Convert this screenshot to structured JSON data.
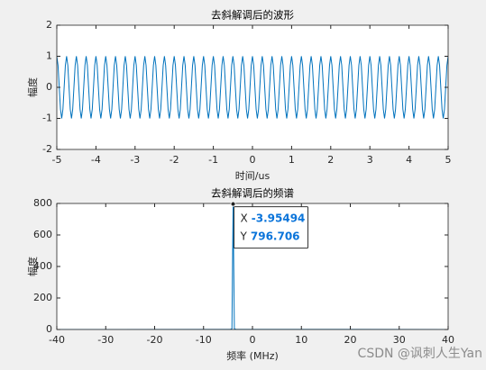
{
  "chart_data": [
    {
      "type": "line",
      "title": "去斜解调后的波形",
      "xlabel": "时间/us",
      "ylabel": "幅度",
      "xlim": [
        -5,
        5
      ],
      "xticks": [
        -5,
        -4,
        -3,
        -2,
        -1,
        0,
        1,
        2,
        3,
        4,
        5
      ],
      "ylim": [
        -2,
        2
      ],
      "yticks": [
        -2,
        -1,
        0,
        1,
        2
      ],
      "color": "#0072bd",
      "x": [
        -5,
        -4.96875,
        -4.9375,
        -4.90625,
        -4.875,
        -4.84375,
        -4.8125,
        -4.78125,
        -4.75,
        -4.71875,
        -4.6875,
        -4.65625,
        -4.625,
        -4.59375,
        -4.5625,
        -4.53125,
        -4.5,
        -4.46875,
        -4.4375,
        -4.40625,
        -4.375,
        -4.34375,
        -4.3125,
        -4.28125,
        -4.25,
        -4.21875,
        -4.1875,
        -4.15625,
        -4.125,
        -4.09375,
        -4.0625,
        -4.03125,
        -4,
        -3.96875,
        -3.9375,
        -3.90625,
        -3.875,
        -3.84375,
        -3.8125,
        -3.78125,
        -3.75,
        -3.71875,
        -3.6875,
        -3.65625,
        -3.625,
        -3.59375,
        -3.5625,
        -3.53125,
        -3.5,
        -3.46875,
        -3.4375,
        -3.40625,
        -3.375,
        -3.34375,
        -3.3125,
        -3.28125,
        -3.25,
        -3.21875,
        -3.1875,
        -3.15625,
        -3.125,
        -3.09375,
        -3.0625,
        -3.03125,
        -3,
        -2.96875,
        -2.9375,
        -2.90625,
        -2.875,
        -2.84375,
        -2.8125,
        -2.78125,
        -2.75,
        -2.71875,
        -2.6875,
        -2.65625,
        -2.625,
        -2.59375,
        -2.5625,
        -2.53125,
        -2.5,
        -2.46875,
        -2.4375,
        -2.40625,
        -2.375,
        -2.34375,
        -2.3125,
        -2.28125,
        -2.25,
        -2.21875,
        -2.1875,
        -2.15625,
        -2.125,
        -2.09375,
        -2.0625,
        -2.03125,
        -2,
        -1.96875,
        -1.9375,
        -1.90625,
        -1.875,
        -1.84375,
        -1.8125,
        -1.78125,
        -1.75,
        -1.71875,
        -1.6875,
        -1.65625,
        -1.625,
        -1.59375,
        -1.5625,
        -1.53125,
        -1.5,
        -1.46875,
        -1.4375,
        -1.40625,
        -1.375,
        -1.34375,
        -1.3125,
        -1.28125,
        -1.25,
        -1.21875,
        -1.1875,
        -1.15625,
        -1.125,
        -1.09375,
        -1.0625,
        -1.03125,
        -1,
        -0.96875,
        -0.9375,
        -0.90625,
        -0.875,
        -0.84375,
        -0.8125,
        -0.78125,
        -0.75,
        -0.71875,
        -0.6875,
        -0.65625,
        -0.625,
        -0.59375,
        -0.5625,
        -0.53125,
        -0.5,
        -0.46875,
        -0.4375,
        -0.40625,
        -0.375,
        -0.34375,
        -0.3125,
        -0.28125,
        -0.25,
        -0.21875,
        -0.1875,
        -0.15625,
        -0.125,
        -0.09375,
        -0.0625,
        -0.03125,
        0,
        0.03125,
        0.0625,
        0.09375,
        0.125,
        0.15625,
        0.1875,
        0.21875,
        0.25,
        0.28125,
        0.3125,
        0.34375,
        0.375,
        0.40625,
        0.4375,
        0.46875,
        0.5,
        0.53125,
        0.5625,
        0.59375,
        0.625,
        0.65625,
        0.6875,
        0.71875,
        0.75,
        0.78125,
        0.8125,
        0.84375,
        0.875,
        0.90625,
        0.9375,
        0.96875,
        1,
        1.03125,
        1.0625,
        1.09375,
        1.125,
        1.15625,
        1.1875,
        1.21875,
        1.25,
        1.28125,
        1.3125,
        1.34375,
        1.375,
        1.40625,
        1.4375,
        1.46875,
        1.5,
        1.53125,
        1.5625,
        1.59375,
        1.625,
        1.65625,
        1.6875,
        1.71875,
        1.75,
        1.78125,
        1.8125,
        1.84375,
        1.875,
        1.90625,
        1.9375,
        1.96875,
        2,
        2.03125,
        2.0625,
        2.09375,
        2.125,
        2.15625,
        2.1875,
        2.21875,
        2.25,
        2.28125,
        2.3125,
        2.34375,
        2.375,
        2.40625,
        2.4375,
        2.46875,
        2.5,
        2.53125,
        2.5625,
        2.59375,
        2.625,
        2.65625,
        2.6875,
        2.71875,
        2.75,
        2.78125,
        2.8125,
        2.84375,
        2.875,
        2.90625,
        2.9375,
        2.96875,
        3,
        3.03125,
        3.0625,
        3.09375,
        3.125,
        3.15625,
        3.1875,
        3.21875,
        3.25,
        3.28125,
        3.3125,
        3.34375,
        3.375,
        3.40625,
        3.4375,
        3.46875,
        3.5,
        3.53125,
        3.5625,
        3.59375,
        3.625,
        3.65625,
        3.6875,
        3.71875,
        3.75,
        3.78125,
        3.8125,
        3.84375,
        3.875,
        3.90625,
        3.9375,
        3.96875,
        4,
        4.03125,
        4.0625,
        4.09375,
        4.125,
        4.15625,
        4.1875,
        4.21875,
        4.25,
        4.28125,
        4.3125,
        4.34375,
        4.375,
        4.40625,
        4.4375,
        4.46875,
        4.5,
        4.53125,
        4.5625,
        4.59375,
        4.625,
        4.65625,
        4.6875,
        4.71875,
        4.75,
        4.78125,
        4.8125,
        4.84375,
        4.875,
        4.90625,
        4.9375,
        4.96875,
        5
      ],
      "values": [
        1,
        0.7071,
        0,
        -0.7071,
        -1,
        -0.7071,
        0,
        0.7071,
        1,
        0.7071,
        0,
        -0.7071,
        -1,
        -0.7071,
        0,
        0.7071,
        1,
        0.7071,
        0,
        -0.7071,
        -1,
        -0.7071,
        0,
        0.7071,
        1,
        0.7071,
        0,
        -0.7071,
        -1,
        -0.7071,
        0,
        0.7071,
        1,
        0.7071,
        0,
        -0.7071,
        -1,
        -0.7071,
        0,
        0.7071,
        1,
        0.7071,
        0,
        -0.7071,
        -1,
        -0.7071,
        0,
        0.7071,
        1,
        0.7071,
        0,
        -0.7071,
        -1,
        -0.7071,
        0,
        0.7071,
        1,
        0.7071,
        0,
        -0.7071,
        -1,
        -0.7071,
        0,
        0.7071,
        1,
        0.7071,
        0,
        -0.7071,
        -1,
        -0.7071,
        0,
        0.7071,
        1,
        0.7071,
        0,
        -0.7071,
        -1,
        -0.7071,
        0,
        0.7071,
        1,
        0.7071,
        0,
        -0.7071,
        -1,
        -0.7071,
        0,
        0.7071,
        1,
        0.7071,
        0,
        -0.7071,
        -1,
        -0.7071,
        0,
        0.7071,
        1,
        0.7071,
        0,
        -0.7071,
        -1,
        -0.7071,
        0,
        0.7071,
        1,
        0.7071,
        0,
        -0.7071,
        -1,
        -0.7071,
        0,
        0.7071,
        1,
        0.7071,
        0,
        -0.7071,
        -1,
        -0.7071,
        0,
        0.7071,
        1,
        0.7071,
        0,
        -0.7071,
        -1,
        -0.7071,
        0,
        0.7071,
        1,
        0.7071,
        0,
        -0.7071,
        -1,
        -0.7071,
        0,
        0.7071,
        1,
        0.7071,
        0,
        -0.7071,
        -1,
        -0.7071,
        0,
        0.7071,
        1,
        0.7071,
        0,
        -0.7071,
        -1,
        -0.7071,
        0,
        0.7071,
        1,
        0.7071,
        0,
        -0.7071,
        -1,
        -0.7071,
        0,
        0.7071,
        1,
        0.7071,
        0,
        -0.7071,
        -1,
        -0.7071,
        0,
        0.7071,
        1,
        0.7071,
        0,
        -0.7071,
        -1,
        -0.7071,
        0,
        0.7071,
        1,
        0.7071,
        0,
        -0.7071,
        -1,
        -0.7071,
        0,
        0.7071,
        1,
        0.7071,
        0,
        -0.7071,
        -1,
        -0.7071,
        0,
        0.7071,
        1,
        0.7071,
        0,
        -0.7071,
        -1,
        -0.7071,
        0,
        0.7071,
        1,
        0.7071,
        0,
        -0.7071,
        -1,
        -0.7071,
        0,
        0.7071,
        1,
        0.7071,
        0,
        -0.7071,
        -1,
        -0.7071,
        0,
        0.7071,
        1,
        0.7071,
        0,
        -0.7071,
        -1,
        -0.7071,
        0,
        0.7071,
        1,
        0.7071,
        0,
        -0.7071,
        -1,
        -0.7071,
        0,
        0.7071,
        1,
        0.7071,
        0,
        -0.7071,
        -1,
        -0.7071,
        0,
        0.7071,
        1,
        0.7071,
        0,
        -0.7071,
        -1,
        -0.7071,
        0,
        0.7071,
        1,
        0.7071,
        0,
        -0.7071,
        -1,
        -0.7071,
        0,
        0.7071,
        1,
        0.7071,
        0,
        -0.7071,
        -1,
        -0.7071,
        0,
        0.7071,
        1,
        0.7071,
        0,
        -0.7071,
        -1,
        -0.7071,
        0,
        0.7071,
        1,
        0.7071,
        0,
        -0.7071,
        -1,
        -0.7071,
        0,
        0.7071,
        1,
        0.7071,
        0,
        -0.7071,
        -1,
        -0.7071,
        0,
        0.7071,
        1,
        0.7071,
        0,
        -0.7071,
        -1,
        -0.7071,
        0,
        0.7071,
        1,
        0.7071,
        0,
        -0.7071,
        -1,
        -0.7071,
        0,
        0.7071,
        1,
        0.7071,
        0,
        -0.7071,
        -1,
        -0.7071,
        0,
        0.7071,
        1,
        0.7071,
        0,
        -0.7071,
        -1,
        -0.7071,
        0,
        0.7071,
        1
      ]
    },
    {
      "type": "line",
      "title": "去斜解调后的频谱",
      "xlabel": "频率 (MHz)",
      "ylabel": "幅度",
      "xlim": [
        -40,
        40
      ],
      "xticks": [
        -40,
        -30,
        -20,
        -10,
        0,
        10,
        20,
        30,
        40
      ],
      "ylim": [
        0,
        800
      ],
      "yticks": [
        0,
        200,
        400,
        600,
        800
      ],
      "color": "#0072bd",
      "x": [
        -40,
        -4.5,
        -4.2,
        -3.95494,
        -3.7,
        -3.4,
        40
      ],
      "values": [
        0,
        1,
        5,
        796.706,
        5,
        1,
        0
      ],
      "datatip": {
        "x_label": "X",
        "x": -3.95494,
        "y_label": "Y",
        "y": 796.706
      }
    }
  ],
  "watermark": "CSDN @讽刺人生Yan"
}
